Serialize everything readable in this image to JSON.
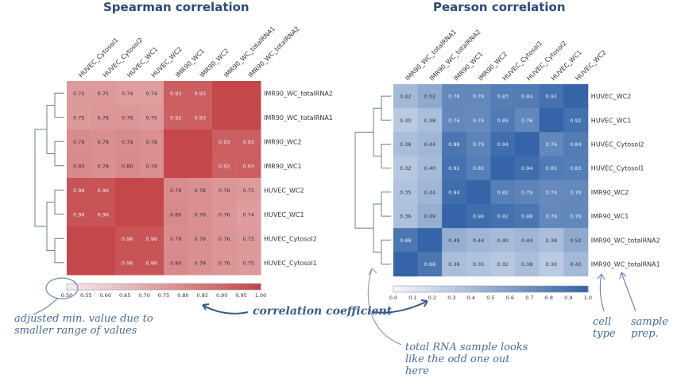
{
  "chart_data": [
    {
      "type": "heatmap",
      "title": "Spearman correlation",
      "col_labels": [
        "HUVEC_Cytosol1",
        "HUVEC_Cytosol2",
        "HUVEC_WC1",
        "HUVEC_WC2",
        "IMR90_WC1",
        "IMR90_WC2",
        "IMR90_WC_totalRNA1",
        "IMR90_WC_totalRNA2"
      ],
      "row_labels": [
        "IMR90_WC_totalRNA2",
        "IMR90_WC_totalRNA1",
        "IMR90_WC2",
        "IMR90_WC1",
        "HUVEC_WC2",
        "HUVEC_WC1",
        "HUVEC_Cytosol2",
        "HUVEC_Cytosol1"
      ],
      "values": [
        [
          0.75,
          0.75,
          0.74,
          0.74,
          0.93,
          0.93,
          1.0,
          1.0
        ],
        [
          0.75,
          0.76,
          0.76,
          0.75,
          0.92,
          0.93,
          1.0,
          1.0
        ],
        [
          0.79,
          0.78,
          0.79,
          0.78,
          1.0,
          1.0,
          0.93,
          0.93
        ],
        [
          0.8,
          0.78,
          0.8,
          0.78,
          1.0,
          1.0,
          0.92,
          0.93
        ],
        [
          0.96,
          0.96,
          1.0,
          1.0,
          0.79,
          0.78,
          0.76,
          0.75
        ],
        [
          0.96,
          0.96,
          1.0,
          1.0,
          0.8,
          0.78,
          0.76,
          0.74
        ],
        [
          1.0,
          1.0,
          0.96,
          0.96,
          0.79,
          0.78,
          0.76,
          0.75
        ],
        [
          1.0,
          1.0,
          0.96,
          0.96,
          0.8,
          0.78,
          0.76,
          0.75
        ]
      ],
      "colorbar_ticks": [
        "0.50",
        "0.55",
        "0.60",
        "0.65",
        "0.70",
        "0.75",
        "0.80",
        "0.85",
        "0.90",
        "0.95",
        "1.00"
      ],
      "vmin": 0.5,
      "vmax": 1.0,
      "colors": {
        "low": "#f7ecec",
        "high": "#c4474a"
      }
    },
    {
      "type": "heatmap",
      "title": "Pearson correlation",
      "col_labels": [
        "IMR90_WC_totalRNA1",
        "IMR90_WC_totalRNA2",
        "IMR90_WC1",
        "IMR90_WC2",
        "HUVEC_Cytosol1",
        "HUVEC_Cytosol2",
        "HUVEC_WC1",
        "HUVEC_WC2"
      ],
      "row_labels": [
        "HUVEC_WC2",
        "HUVEC_WC1",
        "HUVEC_Cytosol2",
        "HUVEC_Cytosol1",
        "IMR90_WC2",
        "IMR90_WC1",
        "IMR90_WC_totalRNA2",
        "IMR90_WC_totalRNA1"
      ],
      "values": [
        [
          0.42,
          0.52,
          0.76,
          0.76,
          0.83,
          0.84,
          0.92,
          1.0
        ],
        [
          0.3,
          0.38,
          0.76,
          0.74,
          0.85,
          0.76,
          1.0,
          0.92
        ],
        [
          0.38,
          0.44,
          0.88,
          0.79,
          0.94,
          1.0,
          0.76,
          0.84
        ],
        [
          0.32,
          0.4,
          0.92,
          0.82,
          1.0,
          0.94,
          0.85,
          0.83
        ],
        [
          0.35,
          0.44,
          0.94,
          1.0,
          0.82,
          0.79,
          0.74,
          0.76
        ],
        [
          0.36,
          0.49,
          1.0,
          0.94,
          0.92,
          0.88,
          0.76,
          0.76
        ],
        [
          0.88,
          1.0,
          0.49,
          0.44,
          0.4,
          0.44,
          0.38,
          0.52
        ],
        [
          1.0,
          0.88,
          0.38,
          0.35,
          0.32,
          0.38,
          0.3,
          0.42
        ]
      ],
      "colorbar_ticks": [
        "0.0",
        "0.1",
        "0.2",
        "0.3",
        "0.4",
        "0.5",
        "0.6",
        "0.7",
        "0.8",
        "0.9",
        "1.0"
      ],
      "vmin": 0.0,
      "vmax": 1.0,
      "colors": {
        "low": "#f2f5fa",
        "high": "#3565a8"
      }
    }
  ],
  "annotations": {
    "min_value": [
      "adjusted min. value due to",
      "smaller range of values"
    ],
    "colorbar": "correlation coefficient",
    "total_rna": [
      "total RNA sample looks",
      "like the odd one out",
      "here"
    ],
    "cell_type": [
      "cell",
      "type"
    ],
    "sample_prep": [
      "sample",
      "prep."
    ]
  }
}
